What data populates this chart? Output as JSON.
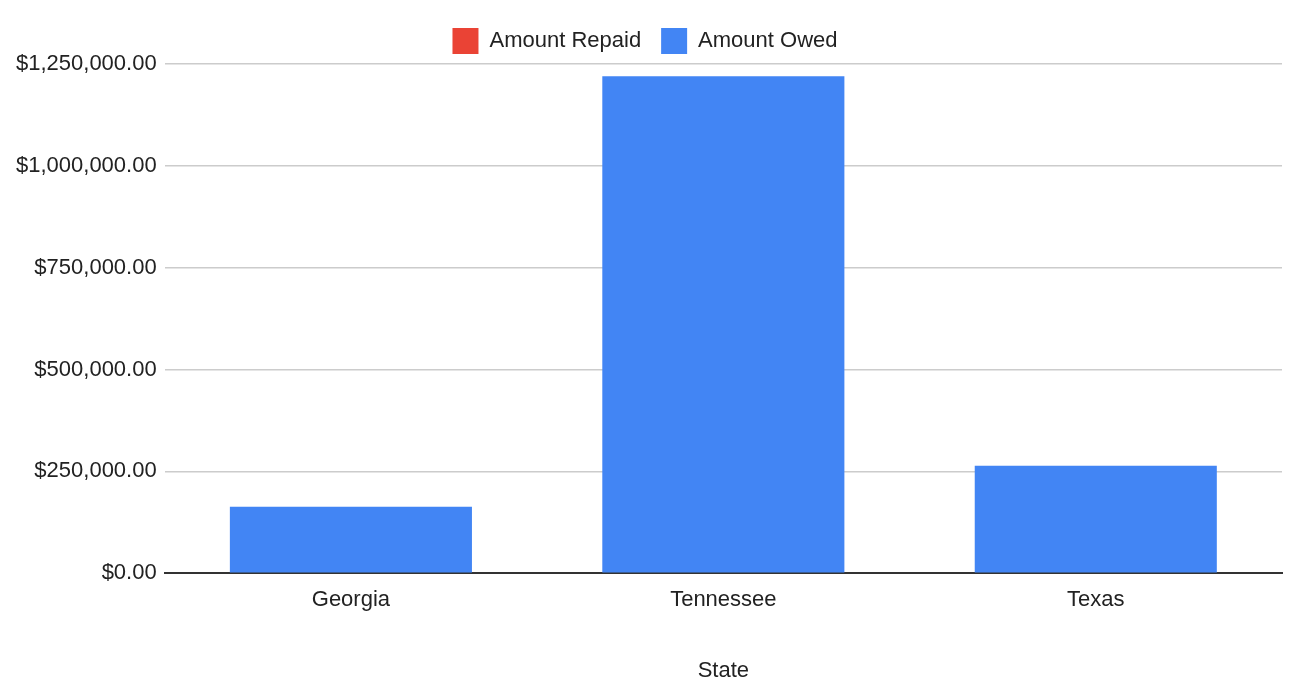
{
  "chart_data": {
    "type": "bar",
    "xlabel": "State",
    "categories": [
      "Georgia",
      "Tennessee",
      "Texas"
    ],
    "stacked": true,
    "series": [
      {
        "name": "Amount Repaid",
        "color": "#ea4335",
        "values": [
          0,
          0,
          0
        ]
      },
      {
        "name": "Amount Owed",
        "color": "#4285f4",
        "values": [
          163000,
          1220000,
          264000
        ]
      }
    ],
    "ylim": [
      0,
      1250000
    ],
    "yticks": [
      {
        "value": 0,
        "label": "$0.00"
      },
      {
        "value": 250000,
        "label": "$250,000.00"
      },
      {
        "value": 500000,
        "label": "$500,000.00"
      },
      {
        "value": 750000,
        "label": "$750,000.00"
      },
      {
        "value": 1000000,
        "label": "$1,000,000.00"
      },
      {
        "value": 1250000,
        "label": "$1,250,000.00"
      }
    ],
    "grid": "y",
    "legend": "top"
  }
}
